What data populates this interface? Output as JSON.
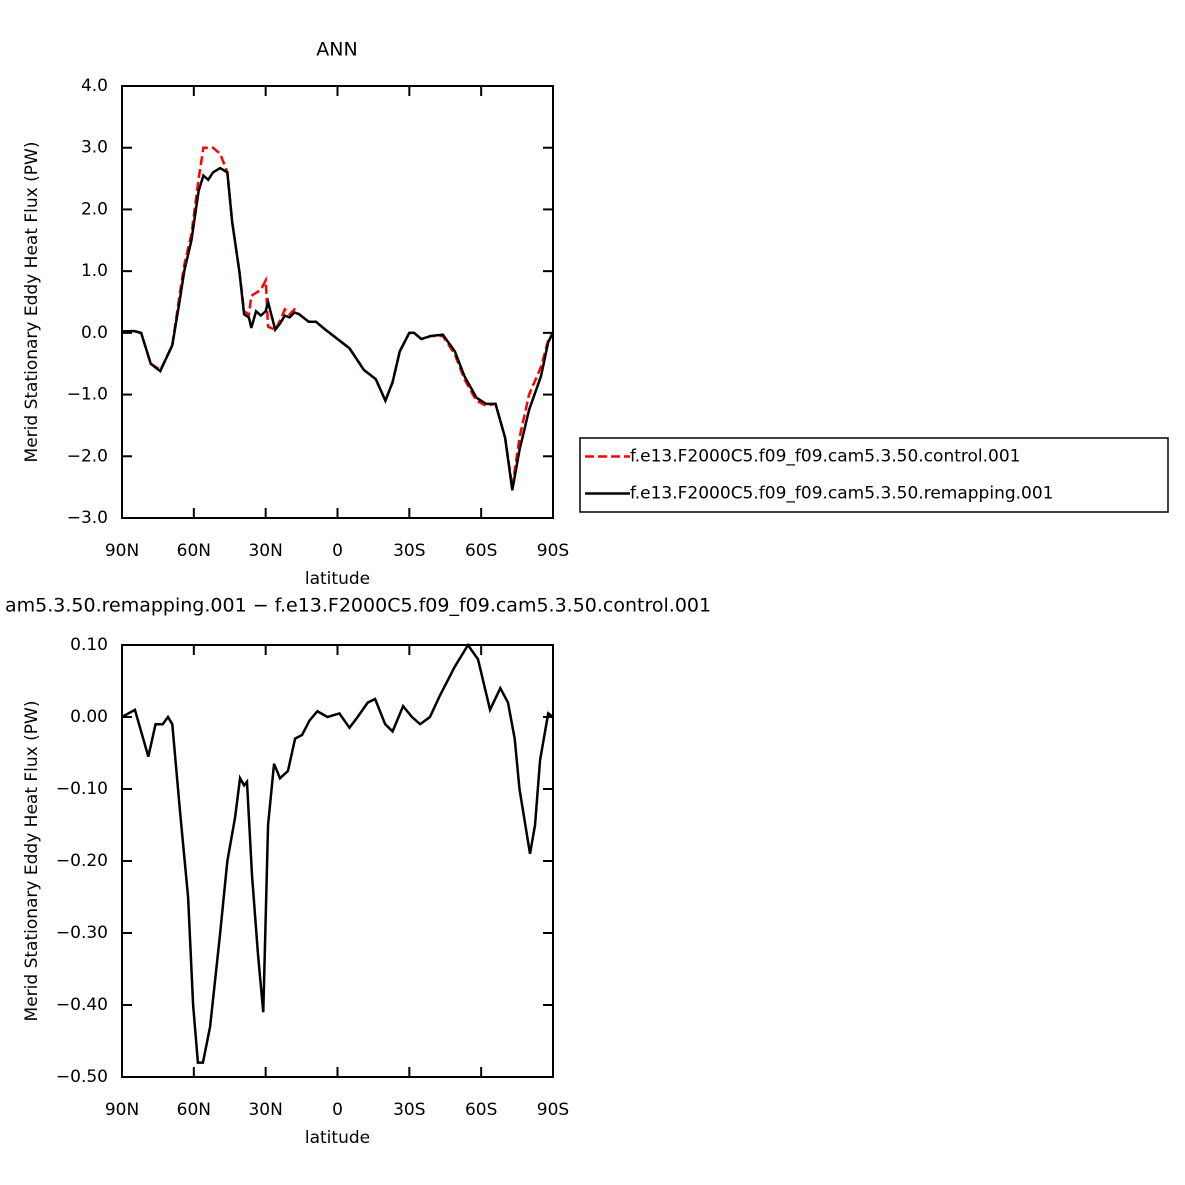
{
  "chart_data": [
    {
      "type": "line",
      "title": "ANN",
      "xlabel": "latitude",
      "ylabel": "Merid Stationary Eddy Heat Flux (PW)",
      "x": [
        90,
        85,
        82,
        78,
        74,
        72,
        69,
        66,
        64,
        61,
        58,
        56,
        54,
        52,
        49,
        46,
        44,
        41,
        39,
        37,
        36,
        34,
        32,
        30,
        29,
        26,
        24,
        22,
        20,
        18,
        16,
        12,
        9,
        5,
        0,
        -5,
        -11,
        -16,
        -20,
        -23,
        -26,
        -30,
        -32,
        -35,
        -39,
        -44,
        -49,
        -53,
        -58,
        -62,
        -66,
        -70,
        -73,
        -76,
        -80,
        -85,
        -88,
        -90
      ],
      "series": [
        {
          "name": "f.e13.F2000C5.f09_f09.cam5.3.50.control.001",
          "color": "#ff0000",
          "style": "dashed",
          "values": [
            0.02,
            0.03,
            0.0,
            -0.5,
            -0.6,
            -0.45,
            -0.2,
            0.6,
            1.1,
            1.6,
            2.5,
            3.0,
            3.0,
            3.0,
            2.9,
            2.6,
            1.8,
            1.0,
            0.35,
            0.3,
            0.6,
            0.65,
            0.7,
            0.85,
            0.1,
            0.05,
            0.2,
            0.38,
            0.3,
            0.38,
            0.3,
            0.18,
            0.18,
            0.05,
            -0.1,
            -0.25,
            -0.6,
            -0.75,
            -1.1,
            -0.8,
            -0.3,
            0.0,
            0.0,
            -0.1,
            -0.05,
            -0.05,
            -0.35,
            -0.75,
            -1.1,
            -1.18,
            -1.15,
            -1.7,
            -2.5,
            -1.7,
            -1.0,
            -0.55,
            -0.12,
            0.0
          ]
        },
        {
          "name": "f.e13.F2000C5.f09_f09.cam5.3.50.remapping.001",
          "color": "#000000",
          "style": "solid",
          "values": [
            0.02,
            0.03,
            0.0,
            -0.5,
            -0.62,
            -0.45,
            -0.2,
            0.5,
            1.0,
            1.5,
            2.3,
            2.55,
            2.48,
            2.6,
            2.67,
            2.6,
            1.8,
            1.0,
            0.3,
            0.25,
            0.08,
            0.35,
            0.28,
            0.35,
            0.5,
            0.05,
            0.15,
            0.28,
            0.25,
            0.33,
            0.3,
            0.18,
            0.18,
            0.05,
            -0.1,
            -0.25,
            -0.6,
            -0.75,
            -1.1,
            -0.8,
            -0.3,
            0.0,
            0.0,
            -0.1,
            -0.05,
            -0.03,
            -0.3,
            -0.7,
            -1.05,
            -1.15,
            -1.15,
            -1.7,
            -2.55,
            -1.9,
            -1.25,
            -0.7,
            -0.15,
            0.0
          ]
        }
      ],
      "xlim": [
        90,
        -90
      ],
      "xticks": [
        {
          "value": 90,
          "label": "90N"
        },
        {
          "value": 60,
          "label": "60N"
        },
        {
          "value": 30,
          "label": "30N"
        },
        0,
        {
          "value": -30,
          "label": "30S"
        },
        {
          "value": -60,
          "label": "60S"
        },
        {
          "value": -90,
          "label": "90S"
        }
      ],
      "ylim": [
        -3,
        4
      ],
      "yticks": [
        {
          "value": 4,
          "label": "4.0"
        },
        {
          "value": 3,
          "label": "3.0"
        },
        {
          "value": 2,
          "label": "2.0"
        },
        {
          "value": 1,
          "label": "1.0"
        },
        {
          "value": 0,
          "label": "0.0"
        },
        {
          "value": -1,
          "label": "−1.0"
        },
        {
          "value": -2,
          "label": "−2.0"
        },
        {
          "value": -3,
          "label": "−3.0"
        }
      ],
      "legend": "outside-right"
    },
    {
      "type": "line",
      "title": "am5.3.50.remapping.001 − f.e13.F2000C5.f09_f09.cam5.3.50.control.001",
      "xlabel": "latitude",
      "ylabel": "Merid Stationary Eddy Heat Flux (PW)",
      "x": [
        90,
        84.6,
        79,
        76,
        73,
        70.8,
        69,
        65.8,
        62.4,
        60.3,
        58.3,
        56.2,
        53.2,
        49,
        46,
        42.8,
        40.7,
        39,
        37.8,
        35.7,
        33.2,
        31,
        29,
        26.5,
        24,
        20.7,
        17.7,
        14.8,
        11.7,
        8.4,
        4.2,
        -0.8,
        -5,
        -8.4,
        -12.6,
        -15.7,
        -19.9,
        -23,
        -27.4,
        -31.1,
        -34.5,
        -38.6,
        -42.8,
        -49,
        -54.5,
        -58.7,
        -63.7,
        -68,
        -71.2,
        -74,
        -76,
        -80.4,
        -82.5,
        -84.6,
        -88,
        -90
      ],
      "series": [
        {
          "name": null,
          "color": "#000000",
          "style": "solid",
          "values": [
            0.0,
            0.01,
            -0.055,
            -0.01,
            -0.01,
            0.0,
            -0.01,
            -0.13,
            -0.25,
            -0.4,
            -0.48,
            -0.48,
            -0.43,
            -0.3,
            -0.2,
            -0.14,
            -0.085,
            -0.095,
            -0.09,
            -0.22,
            -0.33,
            -0.41,
            -0.15,
            -0.065,
            -0.085,
            -0.075,
            -0.03,
            -0.025,
            -0.005,
            0.008,
            0.0,
            0.005,
            -0.015,
            0.0,
            0.02,
            0.025,
            -0.01,
            -0.02,
            0.015,
            0.0,
            -0.01,
            0.0,
            0.03,
            0.07,
            0.1,
            0.08,
            0.01,
            0.04,
            0.02,
            -0.03,
            -0.1,
            -0.19,
            -0.15,
            -0.06,
            0.005,
            0.0
          ]
        }
      ],
      "xlim": [
        90,
        -90
      ],
      "xticks": [
        {
          "value": 90,
          "label": "90N"
        },
        {
          "value": 60,
          "label": "60N"
        },
        {
          "value": 30,
          "label": "30N"
        },
        0,
        {
          "value": -30,
          "label": "30S"
        },
        {
          "value": -60,
          "label": "60S"
        },
        {
          "value": -90,
          "label": "90S"
        }
      ],
      "ylim": [
        -0.5,
        0.1
      ],
      "yticks": [
        {
          "value": 0.1,
          "label": "0.10"
        },
        {
          "value": 0,
          "label": "0.00"
        },
        {
          "value": -0.1,
          "label": "−0.10"
        },
        {
          "value": -0.2,
          "label": "−0.20"
        },
        {
          "value": -0.3,
          "label": "−0.30"
        },
        {
          "value": -0.4,
          "label": "−0.40"
        },
        {
          "value": -0.5,
          "label": "−0.50"
        }
      ]
    }
  ]
}
